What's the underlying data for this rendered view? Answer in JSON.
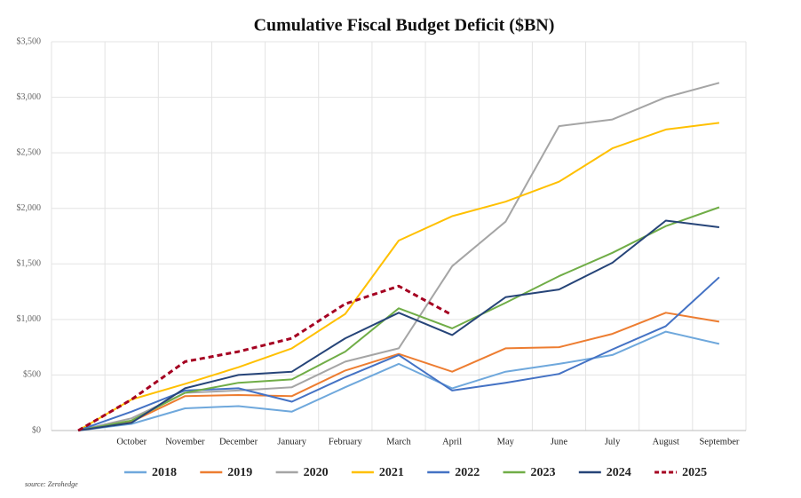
{
  "chart_data": {
    "type": "line",
    "title": "Cumulative Fiscal Budget Deficit ($BN)",
    "source": "source: Zerohedge",
    "categories": [
      null,
      "October",
      "November",
      "December",
      "January",
      "February",
      "March",
      "April",
      "May",
      "June",
      "July",
      "August",
      "September"
    ],
    "series": [
      {
        "name": "2018",
        "color": "#6fa8dc",
        "values": [
          0,
          60,
          200,
          220,
          170,
          390,
          600,
          380,
          530,
          600,
          680,
          890,
          780
        ]
      },
      {
        "name": "2019",
        "color": "#ed7d31",
        "values": [
          0,
          80,
          310,
          320,
          310,
          540,
          690,
          530,
          740,
          750,
          870,
          1060,
          980
        ]
      },
      {
        "name": "2020",
        "color": "#a5a5a5",
        "values": [
          0,
          110,
          340,
          360,
          390,
          620,
          740,
          1480,
          1880,
          2740,
          2800,
          3000,
          3130
        ]
      },
      {
        "name": "2021",
        "color": "#ffc000",
        "values": [
          0,
          280,
          420,
          570,
          740,
          1050,
          1710,
          1930,
          2060,
          2240,
          2540,
          2710,
          2770
        ]
      },
      {
        "name": "2022",
        "color": "#4472c4",
        "values": [
          0,
          170,
          360,
          380,
          260,
          480,
          680,
          360,
          430,
          510,
          730,
          940,
          1380
        ]
      },
      {
        "name": "2023",
        "color": "#70ad47",
        "values": [
          0,
          90,
          340,
          430,
          460,
          710,
          1100,
          920,
          1150,
          1390,
          1600,
          1840,
          2010
        ]
      },
      {
        "name": "2024",
        "color": "#264478",
        "values": [
          0,
          70,
          380,
          500,
          530,
          830,
          1060,
          860,
          1200,
          1270,
          1510,
          1890,
          1830
        ]
      },
      {
        "name": "2025",
        "color": "#a50021",
        "dashed": true,
        "values": [
          0,
          280,
          620,
          710,
          830,
          1140,
          1300,
          1040,
          null,
          null,
          null,
          null,
          null
        ]
      }
    ],
    "ylim": [
      0,
      3500
    ],
    "yticks": [
      {
        "value": 0,
        "label": "$0"
      },
      {
        "value": 500,
        "label": "$500"
      },
      {
        "value": 1000,
        "label": "$1,000"
      },
      {
        "value": 1500,
        "label": "$1,500"
      },
      {
        "value": 2000,
        "label": "$2,000"
      },
      {
        "value": 2500,
        "label": "$2,500"
      },
      {
        "value": 3000,
        "label": "$3,000"
      },
      {
        "value": 3500,
        "label": "$3,500"
      }
    ],
    "grid": true
  }
}
